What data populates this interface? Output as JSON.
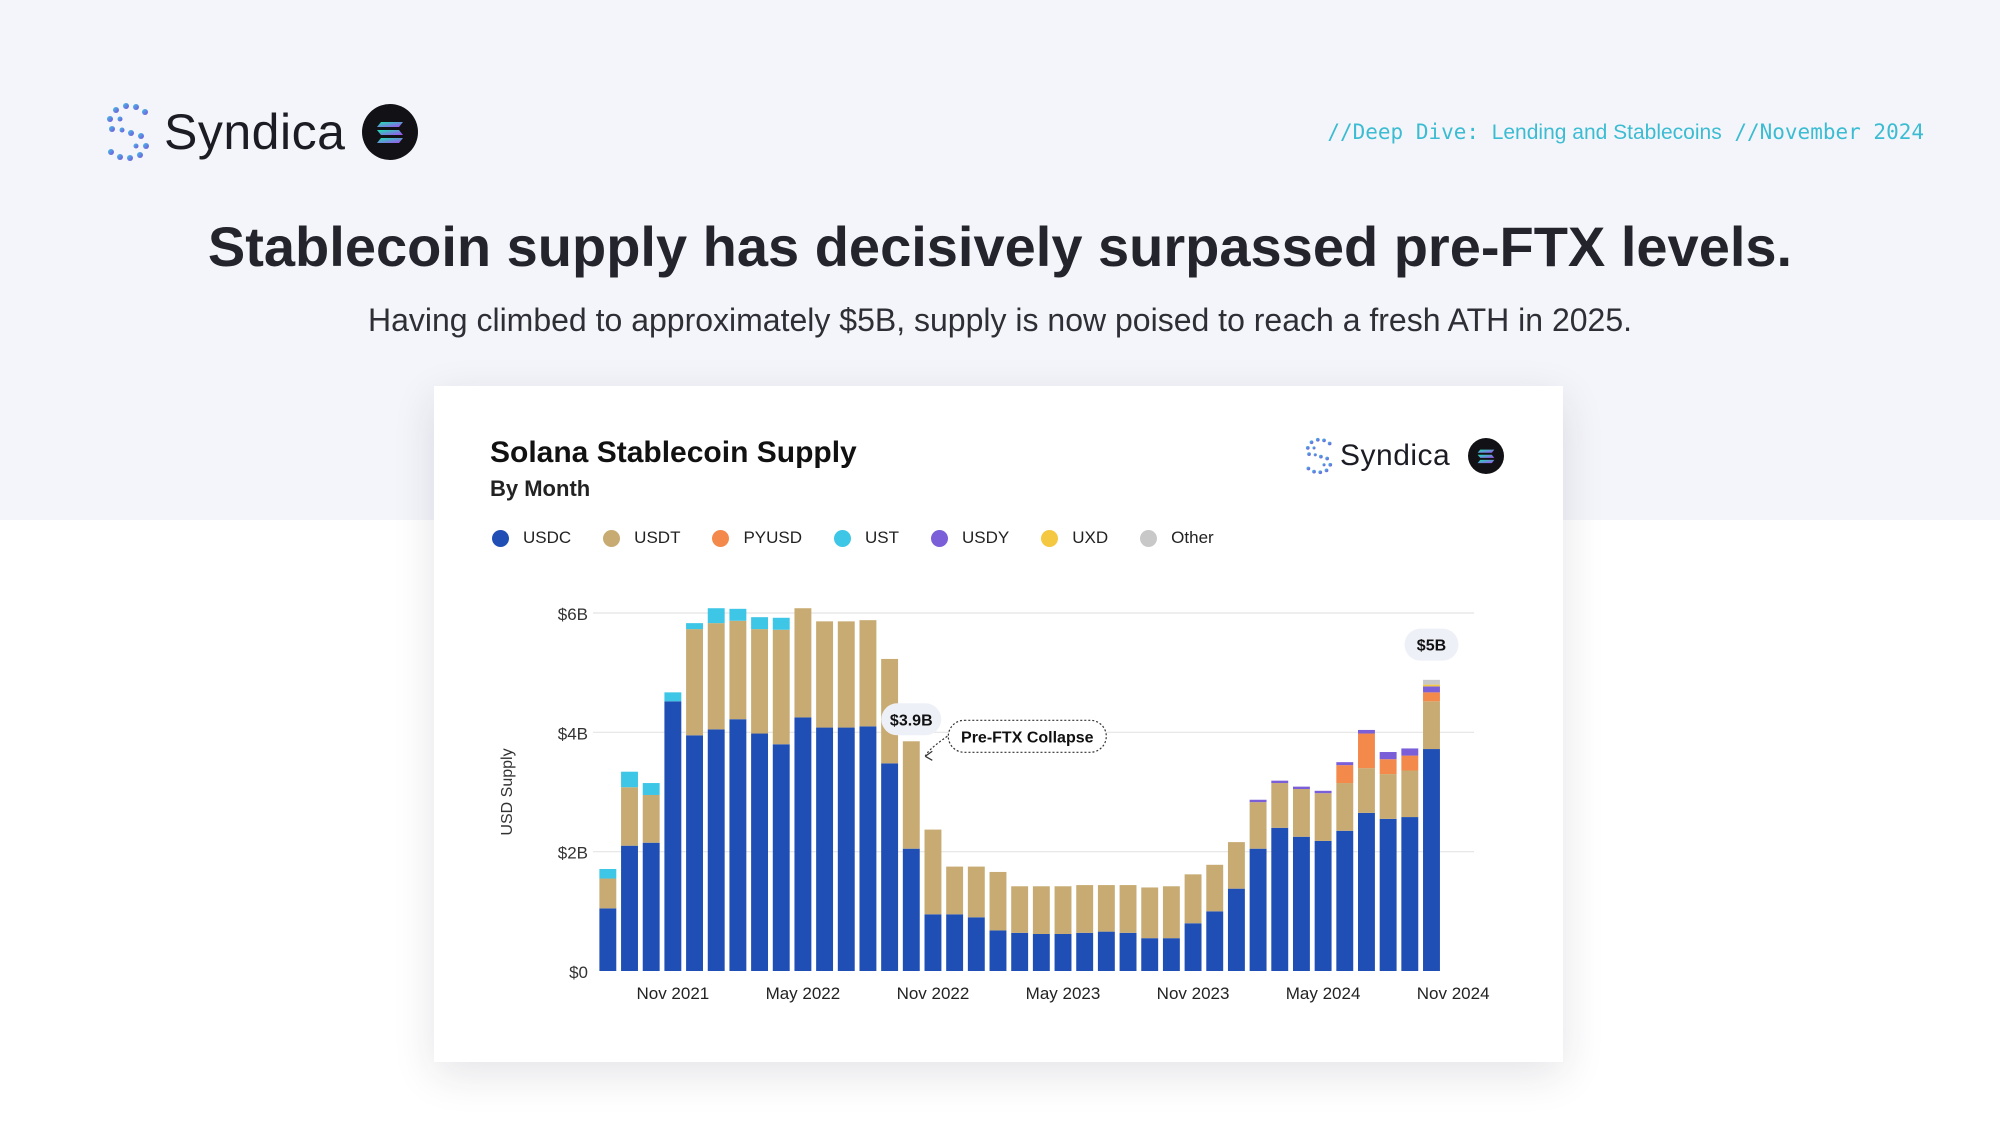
{
  "header": {
    "brand_name": "Syndica",
    "tagline_part1": "//Deep Dive: ",
    "tagline_part2": "Lending and Stablecoins",
    "tagline_part3": " //November 2024",
    "headline": "Stablecoin supply has decisively surpassed pre-FTX levels.",
    "subhead": "Having climbed to approximately $5B, supply is now poised to reach a fresh ATH in 2025."
  },
  "card": {
    "brand_name": "Syndica"
  },
  "colors": {
    "usdc": "#1f4fb4",
    "usdt": "#c7ab72",
    "pyusd": "#f4894c",
    "ust": "#3ec6e6",
    "usdy": "#7a5fd8",
    "uxd": "#f5c842",
    "other": "#c8c8c8",
    "tagline": "#3cbcd2",
    "grid": "#e4e4e4"
  },
  "icons": {
    "brand_logo": "syndica-s-dots-icon",
    "chain_badge": "solana-icon",
    "annotation_arrow": "dotted-arrow-icon"
  },
  "chart_data": {
    "type": "bar",
    "stacked": true,
    "title": "Solana Stablecoin Supply",
    "subtitle": "By Month",
    "ylabel": "USD Supply",
    "xlabel": "",
    "ylim": [
      0,
      6
    ],
    "y_unit": "B USD",
    "y_ticks": [
      {
        "value": 0,
        "label": "$0"
      },
      {
        "value": 2,
        "label": "$2B"
      },
      {
        "value": 4,
        "label": "$4B"
      },
      {
        "value": 6,
        "label": "$6B"
      }
    ],
    "x_ticks": [
      {
        "category": "2021-11",
        "label": "Nov 2021"
      },
      {
        "category": "2022-05",
        "label": "May 2022"
      },
      {
        "category": "2022-11",
        "label": "Nov 2022"
      },
      {
        "category": "2023-05",
        "label": "May 2023"
      },
      {
        "category": "2023-11",
        "label": "Nov 2023"
      },
      {
        "category": "2024-05",
        "label": "May 2024"
      },
      {
        "category": "2024-11",
        "label": "Nov 2024"
      }
    ],
    "grid": true,
    "legend_position": "top-left",
    "categories": [
      "2021-08",
      "2021-09",
      "2021-10",
      "2021-11",
      "2021-12",
      "2022-01",
      "2022-02",
      "2022-03",
      "2022-04",
      "2022-05",
      "2022-06",
      "2022-07",
      "2022-08",
      "2022-09",
      "2022-10",
      "2022-11",
      "2022-12",
      "2023-01",
      "2023-02",
      "2023-03",
      "2023-04",
      "2023-05",
      "2023-06",
      "2023-07",
      "2023-08",
      "2023-09",
      "2023-10",
      "2023-11",
      "2023-12",
      "2024-01",
      "2024-02",
      "2024-03",
      "2024-04",
      "2024-05",
      "2024-06",
      "2024-07",
      "2024-08",
      "2024-09",
      "2024-10",
      "2024-11"
    ],
    "series": [
      {
        "name": "USDC",
        "color_key": "usdc",
        "values": [
          1.05,
          2.1,
          2.15,
          4.52,
          3.95,
          4.05,
          4.22,
          3.98,
          3.8,
          4.25,
          4.08,
          4.08,
          4.1,
          3.48,
          2.05,
          0.95,
          0.95,
          0.9,
          0.68,
          0.64,
          0.62,
          0.62,
          0.64,
          0.66,
          0.64,
          0.55,
          0.55,
          0.8,
          1.0,
          1.38,
          2.05,
          2.4,
          2.25,
          2.18,
          2.35,
          2.65,
          2.55,
          2.58,
          3.72,
          0
        ]
      },
      {
        "name": "USDT",
        "color_key": "usdt",
        "values": [
          0.5,
          0.98,
          0.8,
          0,
          1.78,
          1.78,
          1.65,
          1.75,
          1.92,
          1.83,
          1.78,
          1.78,
          1.78,
          1.75,
          1.8,
          1.42,
          0.8,
          0.85,
          0.98,
          0.78,
          0.8,
          0.8,
          0.8,
          0.78,
          0.8,
          0.85,
          0.87,
          0.82,
          0.78,
          0.78,
          0.78,
          0.75,
          0.8,
          0.8,
          0.8,
          0.75,
          0.75,
          0.78,
          0.8,
          0
        ]
      },
      {
        "name": "PYUSD",
        "color_key": "pyusd",
        "values": [
          0,
          0,
          0,
          0,
          0,
          0,
          0,
          0,
          0,
          0,
          0,
          0,
          0,
          0,
          0,
          0,
          0,
          0,
          0,
          0,
          0,
          0,
          0,
          0,
          0,
          0,
          0,
          0,
          0,
          0,
          0,
          0,
          0,
          0,
          0.3,
          0.58,
          0.25,
          0.25,
          0.15,
          0
        ]
      },
      {
        "name": "UST",
        "color_key": "ust",
        "values": [
          0.16,
          0.26,
          0.2,
          0.15,
          0.1,
          0.25,
          0.2,
          0.2,
          0.2,
          0,
          0,
          0,
          0,
          0,
          0,
          0,
          0,
          0,
          0,
          0,
          0,
          0,
          0,
          0,
          0,
          0,
          0,
          0,
          0,
          0,
          0,
          0,
          0,
          0,
          0,
          0,
          0,
          0,
          0,
          0
        ]
      },
      {
        "name": "USDY",
        "color_key": "usdy",
        "values": [
          0,
          0,
          0,
          0,
          0,
          0,
          0,
          0,
          0,
          0,
          0,
          0,
          0,
          0,
          0,
          0,
          0,
          0,
          0,
          0,
          0,
          0,
          0,
          0,
          0,
          0,
          0,
          0,
          0,
          0,
          0.04,
          0.04,
          0.04,
          0.04,
          0.05,
          0.06,
          0.12,
          0.12,
          0.1,
          0
        ]
      },
      {
        "name": "UXD",
        "color_key": "uxd",
        "values": [
          0,
          0,
          0,
          0,
          0,
          0,
          0,
          0,
          0,
          0,
          0,
          0,
          0,
          0,
          0,
          0,
          0,
          0,
          0,
          0,
          0,
          0,
          0,
          0,
          0,
          0,
          0,
          0,
          0,
          0,
          0,
          0,
          0,
          0,
          0,
          0,
          0,
          0,
          0.03,
          0
        ]
      },
      {
        "name": "Other",
        "color_key": "other",
        "values": [
          0,
          0,
          0,
          0,
          0,
          0,
          0,
          0,
          0,
          0,
          0,
          0,
          0,
          0,
          0,
          0,
          0,
          0,
          0,
          0,
          0,
          0,
          0,
          0,
          0,
          0,
          0,
          0,
          0,
          0,
          0,
          0,
          0,
          0,
          0,
          0,
          0,
          0,
          0.08,
          0
        ]
      }
    ],
    "annotations": [
      {
        "text": "$3.9B",
        "category": "2022-10",
        "value": 3.9
      },
      {
        "text": "Pre-FTX Collapse",
        "category": "2022-10",
        "value": 3.9
      },
      {
        "text": "$5B",
        "category": "2024-10",
        "value": 5.0
      }
    ]
  }
}
